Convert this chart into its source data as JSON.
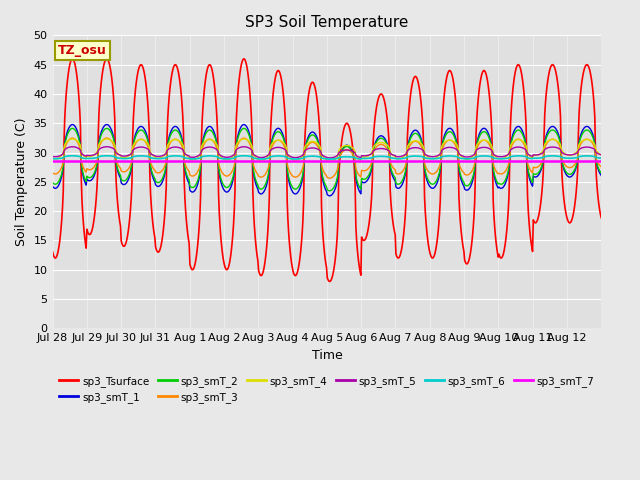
{
  "title": "SP3 Soil Temperature",
  "ylabel": "Soil Temperature (C)",
  "xlabel": "Time",
  "tz_label": "TZ_osu",
  "ylim": [
    0,
    50
  ],
  "figsize": [
    6.4,
    4.8
  ],
  "dpi": 100,
  "bg_color": "#e8e8e8",
  "ax_bg_color": "#e0e0e0",
  "grid_color": "#ffffff",
  "x_tick_labels": [
    "Jul 28",
    "Jul 29",
    "Jul 30",
    "Jul 31",
    "Aug 1",
    "Aug 2",
    "Aug 3",
    "Aug 4",
    "Aug 5",
    "Aug 6",
    "Aug 7",
    "Aug 8",
    "Aug 9",
    "Aug 10",
    "Aug 11",
    "Aug 12"
  ],
  "yticks": [
    0,
    5,
    10,
    15,
    20,
    25,
    30,
    35,
    40,
    45,
    50
  ],
  "series_order": [
    "sp3_Tsurface",
    "sp3_smT_1",
    "sp3_smT_2",
    "sp3_smT_3",
    "sp3_smT_4",
    "sp3_smT_5",
    "sp3_smT_6",
    "sp3_smT_7"
  ],
  "series_colors": {
    "sp3_Tsurface": "#ff0000",
    "sp3_smT_1": "#0000dd",
    "sp3_smT_2": "#00cc00",
    "sp3_smT_3": "#ff8800",
    "sp3_smT_4": "#dddd00",
    "sp3_smT_5": "#aa00aa",
    "sp3_smT_6": "#00cccc",
    "sp3_smT_7": "#ff00ff"
  },
  "series_lw": {
    "sp3_Tsurface": 1.2,
    "sp3_smT_1": 1.0,
    "sp3_smT_2": 1.0,
    "sp3_smT_3": 1.0,
    "sp3_smT_4": 1.0,
    "sp3_smT_5": 1.0,
    "sp3_smT_6": 1.2,
    "sp3_smT_7": 1.8
  },
  "legend_ncol": 6,
  "legend_fontsize": 7.5,
  "title_fontsize": 11,
  "ylabel_fontsize": 9,
  "xlabel_fontsize": 9,
  "tick_fontsize": 8,
  "tz_fontsize": 9,
  "tz_color": "#cc0000",
  "tz_bg": "#ffffcc",
  "tz_edge": "#999900"
}
